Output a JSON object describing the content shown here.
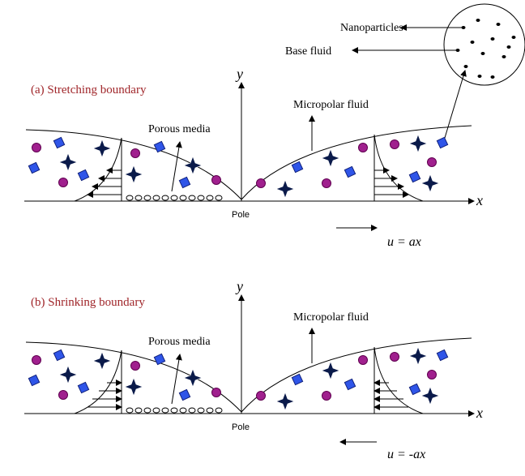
{
  "legend": {
    "nanoparticles": "Nanoparticles",
    "base_fluid": "Base fluid"
  },
  "panels": [
    {
      "title": "(a) Stretching boundary",
      "y_label": "y",
      "x_label": "x",
      "fluid_label": "Micropolar fluid",
      "porous_label": "Porous media",
      "pole_label": "Pole",
      "velocity_label": "u = ax"
    },
    {
      "title": "(b) Shrinking boundary",
      "y_label": "y",
      "x_label": "x",
      "fluid_label": "Micropolar fluid",
      "porous_label": "Porous media",
      "pole_label": "Pole",
      "velocity_label": "u = -ax"
    }
  ]
}
